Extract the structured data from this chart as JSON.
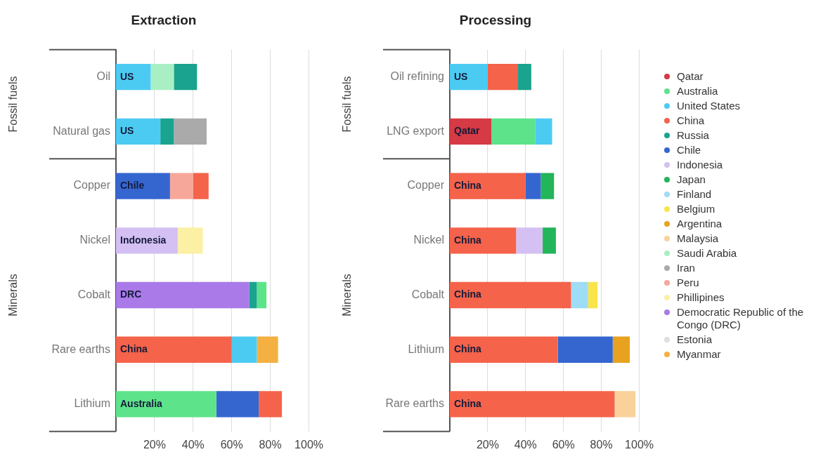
{
  "chart_data": [
    {
      "type": "bar",
      "title": "Extraction",
      "orientation": "horizontal",
      "stacked": true,
      "grid": "x",
      "legend": false,
      "categories": [
        "Oil",
        "Natural gas",
        "Copper",
        "Nickel",
        "Cobalt",
        "Rare earths",
        "Lithium"
      ],
      "annotations": [
        "Fossil fuels",
        "Minerals"
      ],
      "xlim": [
        0,
        100
      ],
      "xticks": [
        {
          "value": 20,
          "label": "20%"
        },
        {
          "value": 40,
          "label": "40%"
        },
        {
          "value": 60,
          "label": "60%"
        },
        {
          "value": 80,
          "label": "80%"
        },
        {
          "value": 100,
          "label": "100%"
        }
      ],
      "series": [
        {
          "values": [
            18,
            23,
            28,
            32,
            69,
            60,
            52
          ],
          "colors": [
            "#4ccbf2",
            "#4ccbf2",
            "#3566d0",
            "#d4c0f3",
            "#a97ae8",
            "#f4634a",
            "#5de38a"
          ],
          "value_labels": [
            "US",
            "US",
            "Chile",
            "Indonesia",
            "DRC",
            "China",
            "Australia"
          ]
        },
        {
          "values": [
            12,
            7,
            12,
            13,
            4,
            13,
            22
          ],
          "colors": [
            "#a8efc4",
            "#1aa38f",
            "#f7a79a",
            "#fbf0a4",
            "#1aa38f",
            "#4ccbf2",
            "#3566d0"
          ]
        },
        {
          "values": [
            12,
            17,
            8,
            null,
            5,
            11,
            12
          ],
          "colors": [
            "#1aa38f",
            "#aaaaaa",
            "#f4634a",
            null,
            "#5de38a",
            "#f5b042",
            "#f4634a"
          ]
        }
      ]
    },
    {
      "type": "bar",
      "title": "Processing",
      "orientation": "horizontal",
      "stacked": true,
      "grid": "x",
      "legend": "right",
      "categories": [
        "Oil refining",
        "LNG export",
        "Copper",
        "Nickel",
        "Cobalt",
        "Lithium",
        "Rare earths"
      ],
      "annotations": [
        "Fossil fuels",
        "Minerals"
      ],
      "xlim": [
        0,
        100
      ],
      "xticks": [
        {
          "value": 20,
          "label": "20%"
        },
        {
          "value": 40,
          "label": "40%"
        },
        {
          "value": 60,
          "label": "60%"
        },
        {
          "value": 80,
          "label": "80%"
        },
        {
          "value": 100,
          "label": "100%"
        }
      ],
      "series": [
        {
          "name": "Qatar",
          "color": "#d63a44",
          "values": [
            null,
            22,
            null,
            null,
            null,
            null,
            null
          ],
          "value_labels": [
            null,
            "Qatar",
            null,
            null,
            null,
            null,
            null
          ]
        },
        {
          "name": "Australia",
          "color": "#5de38a",
          "values": [
            null,
            23,
            null,
            null,
            null,
            null,
            null
          ]
        },
        {
          "name": "United States",
          "color": "#4ccbf2",
          "values": [
            20,
            9,
            null,
            null,
            null,
            null,
            null
          ],
          "value_labels": [
            "US",
            null,
            null,
            null,
            null,
            null,
            null
          ]
        },
        {
          "name": "China",
          "color": "#f4634a",
          "values": [
            16,
            null,
            40,
            35,
            64,
            57,
            87
          ],
          "value_labels": [
            null,
            null,
            "China",
            "China",
            "China",
            "China",
            "China"
          ]
        },
        {
          "name": "Russia",
          "color": "#1aa38f",
          "values": [
            7,
            null,
            null,
            null,
            null,
            null,
            null
          ]
        },
        {
          "name": "Chile",
          "color": "#3566d0",
          "values": [
            null,
            null,
            8,
            null,
            null,
            29,
            null
          ]
        },
        {
          "name": "Indonesia",
          "color": "#d4c0f3",
          "values": [
            null,
            null,
            null,
            14,
            null,
            null,
            null
          ]
        },
        {
          "name": "Japan",
          "color": "#22b559",
          "values": [
            null,
            null,
            7,
            7,
            null,
            null,
            null
          ]
        },
        {
          "name": "Finland",
          "color": "#9fdcf5",
          "values": [
            null,
            null,
            null,
            null,
            9,
            null,
            null
          ]
        },
        {
          "name": "Belgium",
          "color": "#f9e44a",
          "values": [
            null,
            null,
            null,
            null,
            5,
            null,
            null
          ]
        },
        {
          "name": "Argentina",
          "color": "#e8a21f",
          "values": [
            null,
            null,
            null,
            null,
            null,
            9,
            null
          ]
        },
        {
          "name": "Malaysia",
          "color": "#f8d29a",
          "values": [
            null,
            null,
            null,
            null,
            null,
            null,
            11
          ]
        },
        {
          "name": "Saudi Arabia",
          "color": "#a8efc4",
          "values": [
            null,
            null,
            null,
            null,
            null,
            null,
            null
          ]
        },
        {
          "name": "Iran",
          "color": "#aaaaaa",
          "values": [
            null,
            null,
            null,
            null,
            null,
            null,
            null
          ]
        },
        {
          "name": "Peru",
          "color": "#f7a79a",
          "values": [
            null,
            null,
            null,
            null,
            null,
            null,
            null
          ]
        },
        {
          "name": "Phillipines",
          "color": "#fbf0a4",
          "values": [
            null,
            null,
            null,
            null,
            null,
            null,
            null
          ]
        },
        {
          "name": "Democratic Republic of the Congo (DRC)",
          "color": "#a97ae8",
          "values": [
            null,
            null,
            null,
            null,
            null,
            null,
            null
          ]
        },
        {
          "name": "Estonia",
          "color": "#dde0e3",
          "values": [
            null,
            null,
            null,
            null,
            null,
            null,
            null
          ]
        },
        {
          "name": "Myanmar",
          "color": "#f5b042",
          "values": [
            null,
            null,
            null,
            null,
            null,
            null,
            null
          ]
        }
      ]
    }
  ]
}
